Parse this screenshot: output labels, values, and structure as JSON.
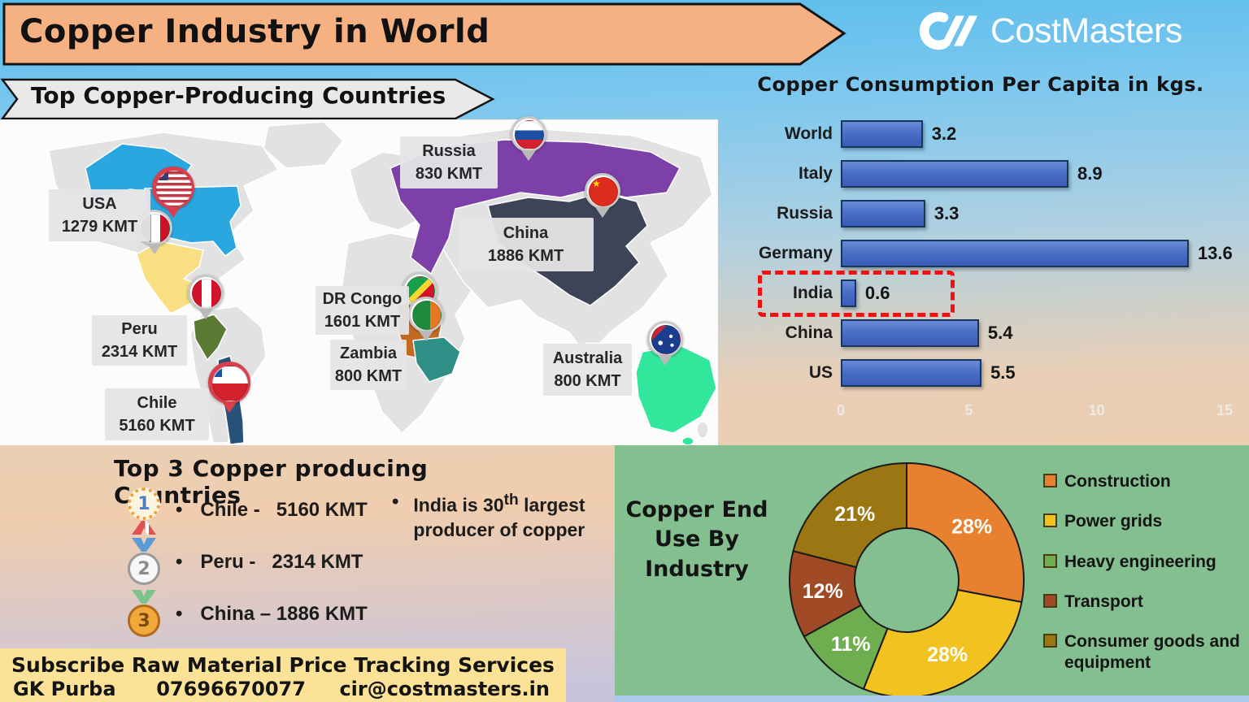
{
  "page": {
    "title_banner": "Copper Industry in World",
    "brand": "CostMasters",
    "map_banner": "Top Copper-Producing Countries"
  },
  "map": {
    "markers": [
      {
        "country": "USA",
        "amount": "1279 KMT",
        "color": "#2ba7e0"
      },
      {
        "country": "Russia",
        "amount": "830 KMT",
        "color": "#7d3fa8"
      },
      {
        "country": "China",
        "amount": "1886 KMT",
        "color": "#3d4458"
      },
      {
        "country": "DR Congo",
        "amount": "1601 KMT",
        "color": "#c26a22"
      },
      {
        "country": "Zambia",
        "amount": "800 KMT",
        "color": "#2f8e86"
      },
      {
        "country": "Peru",
        "amount": "2314 KMT",
        "color": "#5a7a33"
      },
      {
        "country": "Chile",
        "amount": "5160 KMT",
        "color": "#28527a"
      },
      {
        "country": "Australia",
        "amount": "800 KMT",
        "color": "#31e79b"
      }
    ],
    "extra_pins": [
      {
        "country": "Mexico",
        "color": "#f8df81"
      }
    ]
  },
  "chart_data": [
    {
      "type": "bar",
      "orientation": "horizontal",
      "title": "Copper Consumption Per Capita in kgs.",
      "categories": [
        "World",
        "Italy",
        "Russia",
        "Germany",
        "India",
        "China",
        "US"
      ],
      "values": [
        3.2,
        8.9,
        3.3,
        13.6,
        0.6,
        5.4,
        5.5
      ],
      "xlim": [
        0,
        15
      ],
      "x_ticks": [
        0,
        5,
        10,
        15
      ],
      "bar_color": "#4472c4",
      "highlight_category": "India",
      "highlight_style": "red-dashed-box",
      "value_labels": [
        "3.2",
        "8.9",
        "3.3",
        "13.6",
        "0.6",
        "5.4",
        "5.5"
      ]
    },
    {
      "type": "pie",
      "donut": true,
      "title": "Copper End Use By Industry",
      "labels": [
        "Construction",
        "Power grids",
        "Heavy engineering",
        "Transport",
        "Consumer goods and equipment"
      ],
      "values": [
        28,
        28,
        11,
        12,
        21
      ],
      "data_labels": [
        "28%",
        "28%",
        "11%",
        "12%",
        "21%"
      ],
      "colors": [
        "#e8812f",
        "#f2c220",
        "#6ead50",
        "#a04b26",
        "#9b7612"
      ],
      "legend_position": "right"
    }
  ],
  "top3": {
    "title": "Top 3 Copper producing Countries",
    "items": [
      {
        "rank": 1,
        "label": "Chile -   5160 KMT"
      },
      {
        "rank": 2,
        "label": "Peru -   2314 KMT"
      },
      {
        "rank": 3,
        "label": "China – 1886 KMT"
      }
    ]
  },
  "fact": {
    "before": "India is 30",
    "sup": "th",
    "after": " largest producer of copper"
  },
  "footer": {
    "line1": "Subscribe Raw Material Price Tracking Services",
    "name": "GK Purba",
    "phone": "07696670077",
    "email": "cir@costmasters.in"
  }
}
